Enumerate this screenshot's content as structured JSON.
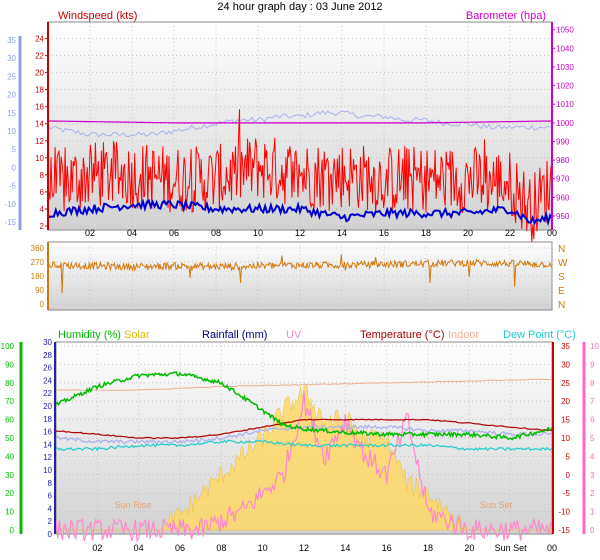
{
  "title": "24 hour graph day : 03 June 2012",
  "chart_data": [
    {
      "type": "line",
      "panel": "wind-barometer",
      "x_ticks": [
        "02",
        "04",
        "06",
        "08",
        "10",
        "12",
        "14",
        "16",
        "18",
        "20",
        "22",
        "00"
      ],
      "left_outer_axis": {
        "label": "",
        "ticks": [
          "35",
          "30",
          "25",
          "20",
          "15",
          "10",
          "5",
          "0",
          "-5",
          "-10",
          "-15"
        ],
        "color": "#8fa0e0"
      },
      "left_axis": {
        "label": "Windspeed (kts)",
        "ticks": [
          "24",
          "22",
          "20",
          "18",
          "16",
          "14",
          "12",
          "10",
          "8",
          "6",
          "4",
          "2"
        ],
        "ylim": [
          2,
          25
        ],
        "color": "#cc0000"
      },
      "right_axis": {
        "label": "Barometer (hpa)",
        "ticks": [
          "1050",
          "1040",
          "1030",
          "1020",
          "1010",
          "1000",
          "990",
          "980",
          "970",
          "960",
          "950"
        ],
        "ylim": [
          950,
          1052
        ],
        "color": "#cc00cc"
      },
      "series": [
        {
          "name": "Windspeed (kts)",
          "color": "#ff0000",
          "axis": "left",
          "x": [
            0,
            2,
            4,
            6,
            8,
            10,
            12,
            14,
            16,
            18,
            20,
            22,
            23,
            24
          ],
          "values": [
            6.5,
            8,
            8,
            7.5,
            7.5,
            9,
            8,
            8,
            7.5,
            7.5,
            7.5,
            7,
            4,
            7
          ]
        },
        {
          "name": "Windspeed (kts)",
          "color": "#0000cc",
          "axis": "left",
          "x": [
            0,
            2,
            4,
            6,
            8,
            10,
            12,
            14,
            16,
            18,
            20,
            22,
            23,
            24
          ],
          "values": [
            3.5,
            4,
            4.5,
            4.5,
            4,
            4,
            4,
            3,
            3.5,
            3.5,
            3.5,
            4,
            2.5,
            3
          ]
        },
        {
          "name": "",
          "color": "#a8b0ee",
          "axis": "left_outer",
          "x": [
            0,
            2,
            3,
            4,
            5,
            6,
            7,
            8,
            9,
            10,
            11,
            12,
            13,
            14,
            15,
            16,
            17,
            18,
            19,
            20,
            21,
            22,
            23,
            24
          ],
          "values": [
            11,
            9,
            9,
            9,
            9,
            10,
            11,
            12,
            13,
            13,
            14,
            14,
            15,
            15,
            14,
            14,
            13,
            13,
            12,
            12,
            11,
            11,
            11,
            11
          ]
        },
        {
          "name": "Barometer (hpa)",
          "color": "#cc00cc",
          "axis": "right",
          "x": [
            0,
            6,
            12,
            18,
            24
          ],
          "values": [
            1001,
            1000,
            1000,
            1000,
            1001
          ]
        }
      ]
    },
    {
      "type": "line",
      "panel": "wind-direction",
      "left_axis": {
        "ticks": [
          "360",
          "270",
          "180",
          "90",
          "0"
        ],
        "ylim": [
          0,
          360
        ]
      },
      "right_axis": {
        "ticks": [
          "N",
          "W",
          "S",
          "E",
          "N"
        ]
      },
      "series": [
        {
          "name": "",
          "color": "#d4780a",
          "x": [
            0,
            2,
            4,
            6,
            8,
            10,
            12,
            14,
            16,
            18,
            20,
            22,
            24
          ],
          "values": [
            250,
            245,
            240,
            245,
            240,
            245,
            250,
            250,
            255,
            260,
            265,
            260,
            255
          ]
        }
      ]
    },
    {
      "type": "line",
      "panel": "humidity-temperature",
      "x_ticks": [
        "02",
        "04",
        "06",
        "08",
        "10",
        "12",
        "14",
        "16",
        "18",
        "20",
        "Sun Set",
        "00"
      ],
      "legend": [
        "Humidity (%)",
        "Solar",
        "Rainfall (mm)",
        "UV",
        "Temperature (°C)",
        "Indoor",
        "Dew Point (°C)"
      ],
      "legend_colors": [
        "#00bb00",
        "#d4c000",
        "#000080",
        "#ff88cc",
        "#aa0000",
        "#f0b090",
        "#22cccc"
      ],
      "axes": {
        "humidity": {
          "ticks": [
            "100",
            "90",
            "80",
            "70",
            "60",
            "50",
            "40",
            "30",
            "20",
            "10",
            "0"
          ],
          "ylim": [
            0,
            100
          ],
          "color": "#00bb00"
        },
        "rainfall": {
          "ticks": [
            "30",
            "28",
            "26",
            "24",
            "22",
            "20",
            "18",
            "16",
            "14",
            "12",
            "10",
            "8",
            "6",
            "4",
            "2",
            "0"
          ],
          "color": "#2222aa"
        },
        "temperature": {
          "ticks": [
            "35",
            "30",
            "25",
            "20",
            "15",
            "10",
            "5",
            "0",
            "-5",
            "-10",
            "-15"
          ],
          "ylim": [
            -15,
            35
          ],
          "color": "#cc0000"
        },
        "uv": {
          "ticks": [
            "10",
            "9",
            "8",
            "7",
            "6",
            "5",
            "4",
            "3",
            "2",
            "1",
            "0"
          ],
          "ylim": [
            0,
            10
          ],
          "color": "#ff66cc"
        }
      },
      "annotations": [
        "Sun Rise",
        "Sun Set"
      ],
      "series": [
        {
          "name": "Humidity (%)",
          "color": "#00bb00",
          "axis": "humidity",
          "x": [
            0,
            2,
            4,
            6,
            8,
            10,
            11,
            12,
            14,
            16,
            18,
            20,
            22,
            24
          ],
          "values": [
            68,
            78,
            84,
            85,
            80,
            65,
            57,
            55,
            53,
            52,
            52,
            52,
            50,
            55
          ]
        },
        {
          "name": "Indoor",
          "color": "#f0b090",
          "axis": "humidity",
          "x": [
            0,
            4,
            8,
            12,
            16,
            20,
            24
          ],
          "values": [
            76,
            76,
            78,
            79,
            80,
            81,
            82
          ]
        },
        {
          "name": "Temperature (°C)",
          "color": "#aa0000",
          "axis": "temperature",
          "x": [
            0,
            2,
            4,
            6,
            8,
            10,
            12,
            14,
            16,
            18,
            20,
            22,
            24
          ],
          "values": [
            12,
            11,
            10,
            10,
            11,
            13,
            15,
            15,
            15,
            15,
            14,
            13,
            12
          ]
        },
        {
          "name": "Dew Point (°C)",
          "color": "#22cccc",
          "axis": "temperature",
          "x": [
            0,
            2,
            4,
            6,
            8,
            10,
            12,
            14,
            16,
            18,
            20,
            22,
            24
          ],
          "values": [
            7,
            7,
            8,
            8,
            9,
            9,
            8,
            8,
            8,
            8,
            7,
            7,
            7
          ]
        },
        {
          "name": "",
          "color": "#a8b0ee",
          "axis": "temperature",
          "x": [
            0,
            2,
            4,
            6,
            8,
            10,
            12,
            14,
            16,
            18,
            20,
            22,
            24
          ],
          "values": [
            10,
            9,
            9,
            9,
            10,
            12,
            13,
            13,
            13,
            12,
            12,
            11,
            11
          ]
        },
        {
          "name": "Solar",
          "color": "#ffd866",
          "axis": "uv",
          "x": [
            0,
            5,
            6,
            8,
            10,
            11,
            12,
            13,
            14,
            15,
            16,
            17,
            18,
            19,
            20,
            24
          ],
          "values": [
            0,
            0,
            0.8,
            3,
            5,
            6.5,
            7.5,
            6,
            6,
            5,
            5,
            2.5,
            2,
            1,
            0,
            0
          ]
        },
        {
          "name": "UV",
          "color": "#ff88cc",
          "axis": "uv",
          "x": [
            0,
            7,
            9,
            10,
            11,
            12,
            13,
            14,
            15,
            16,
            17,
            18,
            19,
            20,
            24
          ],
          "values": [
            0,
            0,
            1,
            2,
            3,
            7,
            4,
            6,
            4,
            3,
            6,
            1,
            0.5,
            0,
            0
          ]
        }
      ]
    }
  ]
}
